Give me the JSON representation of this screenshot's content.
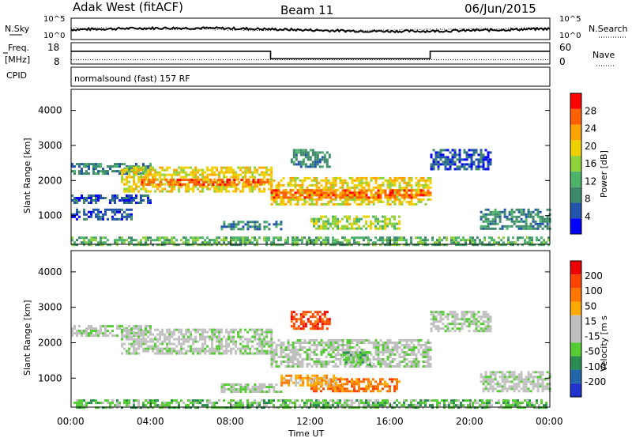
{
  "header": {
    "title": "Adak West (fitACF)",
    "beam": "Beam 11",
    "date": "06/Jun/2015"
  },
  "top_panels": {
    "nsky_label": "N.Sky",
    "nsearch_label": "N.Search",
    "noise_ticks": [
      "10^5",
      "10^0"
    ],
    "freq_label": "Freq.",
    "freq_unit": "[MHz]",
    "freq_ticks": [
      "18",
      "8"
    ],
    "nave_label": "Nave",
    "nave_ticks": [
      "60",
      "0"
    ],
    "cpid_label": "CPID",
    "cpid_text": "normalsound (fast) 157 RF"
  },
  "colors": {
    "power": [
      "#0000ff",
      "#2255aa",
      "#3d8a6a",
      "#4db36b",
      "#8fd23c",
      "#f0d000",
      "#ffa500",
      "#ff6000",
      "#ff0000"
    ],
    "velocity": [
      "#2233cc",
      "#2266aa",
      "#2b8c4f",
      "#55cc33",
      "#c0c0c0",
      "#c0c0c0",
      "#ffaa00",
      "#ff7700",
      "#ff4400",
      "#ee0000"
    ],
    "gray": "#c0c0c0"
  },
  "chart_data": [
    {
      "type": "line",
      "title": "",
      "series": [
        {
          "name": "N.Sky",
          "style": "solid",
          "level": "mid"
        },
        {
          "name": "N.Search",
          "style": "dotted",
          "level": "mid"
        }
      ],
      "x": {
        "label": "",
        "range": [
          "00:00",
          "24:00"
        ]
      },
      "ylim_log10": [
        0,
        5
      ]
    },
    {
      "type": "line",
      "series": [
        {
          "name": "Freq.",
          "style": "solid",
          "segments": [
            {
              "start": "00:00",
              "end": "10:00",
              "value_mhz": 14
            },
            {
              "start": "10:00",
              "end": "18:00",
              "value_mhz": 10.5
            },
            {
              "start": "18:00",
              "end": "24:00",
              "value_mhz": 14
            }
          ]
        },
        {
          "name": "Nave",
          "style": "dotted",
          "value": 12
        }
      ],
      "freq_ylim": [
        8,
        18
      ],
      "nave_ylim": [
        0,
        60
      ]
    },
    {
      "type": "heatmap",
      "title": "Power",
      "ylabel": "Slant Range [km]",
      "colorbar_label": "Power [dB]",
      "colorbar_ticks": [
        "28",
        "24",
        "20",
        "16",
        "12",
        "8",
        "4"
      ],
      "ylim": [
        180,
        4600
      ],
      "yticks": [
        "4000",
        "3000",
        "2000",
        "1000"
      ],
      "xlim": [
        0,
        24
      ],
      "regions": [
        {
          "t0": 0,
          "t1": 4,
          "r0": 2200,
          "r1": 2500,
          "level": 2
        },
        {
          "t0": 0,
          "t1": 4,
          "r0": 1350,
          "r1": 1600,
          "level": 1
        },
        {
          "t0": 0,
          "t1": 3,
          "r0": 900,
          "r1": 1200,
          "level": 1
        },
        {
          "t0": 2.5,
          "t1": 10,
          "r0": 1700,
          "r1": 2400,
          "level": 5
        },
        {
          "t0": 3.5,
          "t1": 10,
          "r0": 1850,
          "r1": 2050,
          "level": 7
        },
        {
          "t0": 10,
          "t1": 18,
          "r0": 1300,
          "r1": 2100,
          "level": 5
        },
        {
          "t0": 10,
          "t1": 18,
          "r0": 1500,
          "r1": 1750,
          "level": 7
        },
        {
          "t0": 12,
          "t1": 16.5,
          "r0": 600,
          "r1": 1000,
          "level": 4
        },
        {
          "t0": 7.5,
          "t1": 10.5,
          "r0": 600,
          "r1": 850,
          "level": 2
        },
        {
          "t0": 11,
          "t1": 13,
          "r0": 2400,
          "r1": 2900,
          "level": 2
        },
        {
          "t0": 18,
          "t1": 21,
          "r0": 2300,
          "r1": 2900,
          "level": 1
        },
        {
          "t0": 20.5,
          "t1": 24,
          "r0": 650,
          "r1": 1200,
          "level": 2
        },
        {
          "t0": 0,
          "t1": 24,
          "r0": 180,
          "r1": 400,
          "level": 3
        }
      ]
    },
    {
      "type": "heatmap",
      "title": "Velocity",
      "ylabel": "Slant Range [km]",
      "xlabel": "Time UT",
      "colorbar_label": "Velocity [m s",
      "colorbar_ticks": [
        "200",
        "100",
        "50",
        "15",
        "-15",
        "-50",
        "-100",
        "-200"
      ],
      "ylim": [
        180,
        4600
      ],
      "yticks": [
        "4000",
        "3000",
        "2000",
        "1000"
      ],
      "xticks": [
        "00:00",
        "04:00",
        "08:00",
        "12:00",
        "16:00",
        "20:00",
        "00:00"
      ],
      "xlim": [
        0,
        24
      ],
      "regions": [
        {
          "t0": 0,
          "t1": 4,
          "r0": 2200,
          "r1": 2500,
          "level": 4
        },
        {
          "t0": 2.5,
          "t1": 10,
          "r0": 1700,
          "r1": 2400,
          "level": 4
        },
        {
          "t0": 10,
          "t1": 18,
          "r0": 1300,
          "r1": 2100,
          "level": 4
        },
        {
          "t0": 13.5,
          "t1": 15,
          "r0": 1400,
          "r1": 1750,
          "level": 3
        },
        {
          "t0": 12,
          "t1": 16.5,
          "r0": 600,
          "r1": 1000,
          "level": 7
        },
        {
          "t0": 10.5,
          "t1": 13.5,
          "r0": 800,
          "r1": 1100,
          "level": 6
        },
        {
          "t0": 7.5,
          "t1": 10.5,
          "r0": 600,
          "r1": 850,
          "level": 4
        },
        {
          "t0": 11,
          "t1": 13,
          "r0": 2400,
          "r1": 2900,
          "level": 8
        },
        {
          "t0": 18,
          "t1": 21,
          "r0": 2300,
          "r1": 2900,
          "level": 4
        },
        {
          "t0": 20.5,
          "t1": 24,
          "r0": 650,
          "r1": 1200,
          "level": 4
        },
        {
          "t0": 0,
          "t1": 24,
          "r0": 180,
          "r1": 400,
          "level": 3
        }
      ]
    }
  ]
}
